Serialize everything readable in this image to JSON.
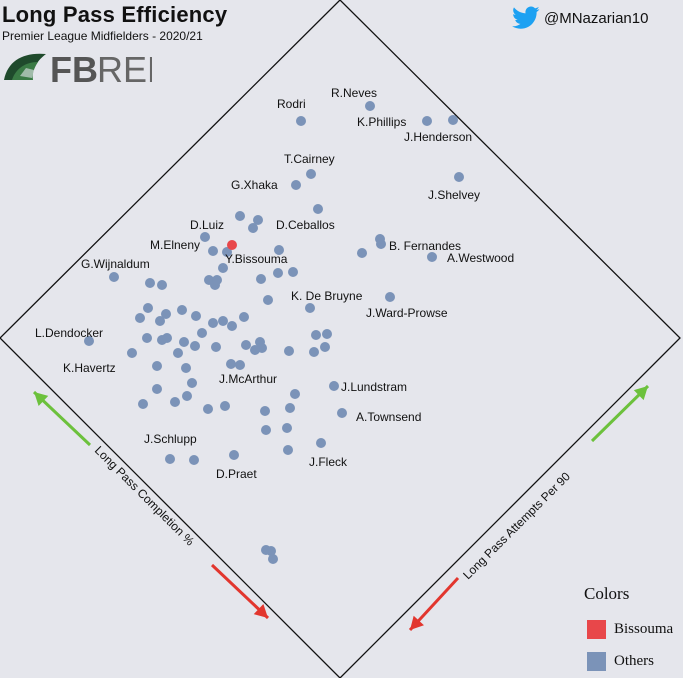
{
  "header": {
    "title": "Long Pass Efficiency",
    "subtitle": "Premier League Midfielders - 2020/21",
    "twitter_handle": "@MNazarian10",
    "logo_text": "FBREF"
  },
  "colors": {
    "highlight": "#e8474a",
    "others": "#7b93b8",
    "arrow_green": "#6cc13c",
    "arrow_red": "#e2362e",
    "twitter_blue": "#1da1f2"
  },
  "chart_data": {
    "type": "scatter",
    "title": "Long Pass Efficiency",
    "subtitle": "Premier League Midfielders - 2020/21",
    "axes": {
      "completion_label": "Long Pass Completion %",
      "attempts_label": "Long Pass Attempts Per 90",
      "orientation": "diamond (rotated 45°)"
    },
    "legend": {
      "title": "Colors",
      "placement": "bottom-right",
      "entries": [
        {
          "name": "Bissouma",
          "color": "#e8474a"
        },
        {
          "name": "Others",
          "color": "#7b93b8"
        }
      ]
    },
    "labeled_players": [
      {
        "name": "Rodri",
        "highlight": false
      },
      {
        "name": "R.Neves",
        "highlight": false
      },
      {
        "name": "K.Phillips",
        "highlight": false
      },
      {
        "name": "J.Henderson",
        "highlight": false
      },
      {
        "name": "T.Cairney",
        "highlight": false
      },
      {
        "name": "G.Xhaka",
        "highlight": false
      },
      {
        "name": "J.Shelvey",
        "highlight": false
      },
      {
        "name": "D.Luiz",
        "highlight": false
      },
      {
        "name": "D.Ceballos",
        "highlight": false
      },
      {
        "name": "M.Elneny",
        "highlight": false
      },
      {
        "name": "Y.Bissouma",
        "highlight": true
      },
      {
        "name": "B. Fernandes",
        "highlight": false
      },
      {
        "name": "A.Westwood",
        "highlight": false
      },
      {
        "name": "G.Wijnaldum",
        "highlight": false
      },
      {
        "name": "K. De Bruyne",
        "highlight": false
      },
      {
        "name": "J.Ward-Prowse",
        "highlight": false
      },
      {
        "name": "L.Dendocker",
        "highlight": false
      },
      {
        "name": "K.Havertz",
        "highlight": false
      },
      {
        "name": "J.McArthur",
        "highlight": false
      },
      {
        "name": "J.Lundstram",
        "highlight": false
      },
      {
        "name": "A.Townsend",
        "highlight": false
      },
      {
        "name": "J.Schlupp",
        "highlight": false
      },
      {
        "name": "D.Praet",
        "highlight": false
      },
      {
        "name": "J.Fleck",
        "highlight": false
      }
    ]
  }
}
